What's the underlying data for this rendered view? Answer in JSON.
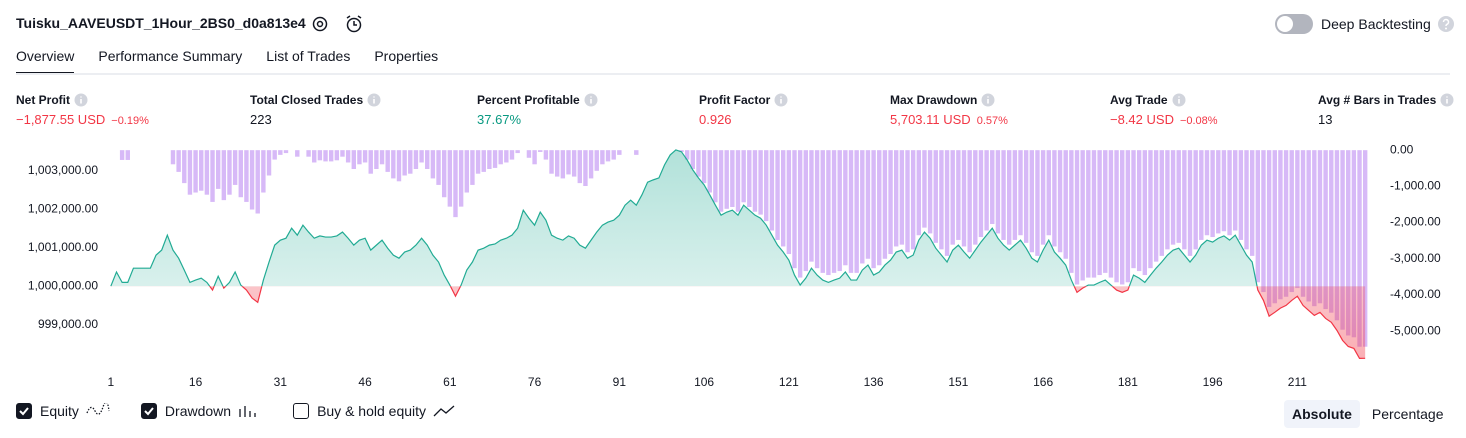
{
  "header": {
    "title": "Tuisku_AAVEUSDT_1Hour_2BS0_d0a813e4",
    "toggle_label": "Deep Backtesting",
    "toggle_on": false
  },
  "tabs": [
    "Overview",
    "Performance Summary",
    "List of Trades",
    "Properties"
  ],
  "active_tab": 0,
  "metrics": [
    {
      "label": "Net Profit",
      "value": "−1,877.55 USD",
      "percent": "−0.19%",
      "color": "#f23645"
    },
    {
      "label": "Total Closed Trades",
      "value": "223",
      "color": "#131722"
    },
    {
      "label": "Percent Profitable",
      "value": "37.67%",
      "color": "#089981"
    },
    {
      "label": "Profit Factor",
      "value": "0.926",
      "color": "#f23645"
    },
    {
      "label": "Max Drawdown",
      "value": "5,703.11 USD",
      "percent": "0.57%",
      "color": "#f23645"
    },
    {
      "label": "Avg Trade",
      "value": "−8.42 USD",
      "percent": "−0.08%",
      "color": "#f23645"
    },
    {
      "label": "Avg # Bars in Trades",
      "value": "13",
      "color": "#131722"
    }
  ],
  "chart_data": {
    "type": "combo",
    "grid": false,
    "x": [
      1,
      2,
      3,
      4,
      5,
      6,
      7,
      8,
      9,
      10,
      11,
      12,
      13,
      14,
      15,
      16,
      17,
      18,
      19,
      20,
      21,
      22,
      23,
      24,
      25,
      26,
      27,
      28,
      29,
      30,
      31,
      32,
      33,
      34,
      35,
      36,
      37,
      38,
      39,
      40,
      41,
      42,
      43,
      44,
      45,
      46,
      47,
      48,
      49,
      50,
      51,
      52,
      53,
      54,
      55,
      56,
      57,
      58,
      59,
      60,
      61,
      62,
      63,
      64,
      65,
      66,
      67,
      68,
      69,
      70,
      71,
      72,
      73,
      74,
      75,
      76,
      77,
      78,
      79,
      80,
      81,
      82,
      83,
      84,
      85,
      86,
      87,
      88,
      89,
      90,
      91,
      92,
      93,
      94,
      95,
      96,
      97,
      98,
      99,
      100,
      101,
      102,
      103,
      104,
      105,
      106,
      107,
      108,
      109,
      110,
      111,
      112,
      113,
      114,
      115,
      116,
      117,
      118,
      119,
      120,
      121,
      122,
      123,
      124,
      125,
      126,
      127,
      128,
      129,
      130,
      131,
      132,
      133,
      134,
      135,
      136,
      137,
      138,
      139,
      140,
      141,
      142,
      143,
      144,
      145,
      146,
      147,
      148,
      149,
      150,
      151,
      152,
      153,
      154,
      155,
      156,
      157,
      158,
      159,
      160,
      161,
      162,
      163,
      164,
      165,
      166,
      167,
      168,
      169,
      170,
      171,
      172,
      173,
      174,
      175,
      176,
      177,
      178,
      179,
      180,
      181,
      182,
      183,
      184,
      185,
      186,
      187,
      188,
      189,
      190,
      191,
      192,
      193,
      194,
      195,
      196,
      197,
      198,
      199,
      200,
      201,
      202,
      203,
      204,
      205,
      206,
      207,
      208,
      209,
      210,
      211,
      212,
      213,
      214,
      215,
      216,
      217,
      218,
      219,
      220,
      221,
      222,
      223
    ],
    "xlim": [
      0.5,
      223.5
    ],
    "xticks": [
      1,
      16,
      31,
      46,
      61,
      76,
      91,
      106,
      121,
      136,
      151,
      166,
      181,
      196,
      211
    ],
    "ylim": [
      998000,
      1003600
    ],
    "yticks": [
      {
        "value": 999000,
        "label": "999,000.00"
      },
      {
        "value": 1000000,
        "label": "1,000,000.00"
      },
      {
        "value": 1001000,
        "label": "1,001,000.00"
      },
      {
        "value": 1002000,
        "label": "1,002,000.00"
      },
      {
        "value": 1003000,
        "label": "1,003,000.00"
      }
    ],
    "y2lim": [
      -5880,
      60
    ],
    "y2ticks": [
      {
        "value": 0,
        "label": "0.00"
      },
      {
        "value": -1000,
        "label": "-1,000.00"
      },
      {
        "value": -2000,
        "label": "-2,000.00"
      },
      {
        "value": -3000,
        "label": "-3,000.00"
      },
      {
        "value": -4000,
        "label": "-4,000.00"
      },
      {
        "value": -5000,
        "label": "-5,000.00"
      }
    ],
    "series": [
      {
        "name": "Equity",
        "type": "area",
        "color": "#22ab94",
        "negative_color": "#f23645",
        "visible": true,
        "values": [
          1000000,
          1000370,
          1000100,
          1000100,
          1000470,
          1000470,
          1000470,
          1000470,
          1000810,
          1000940,
          1001330,
          1000940,
          1000730,
          1000420,
          1000100,
          1000160,
          1000210,
          1000100,
          999900,
          1000260,
          999950,
          1000100,
          1000370,
          1000030,
          999900,
          999690,
          999580,
          1000160,
          1000630,
          1001070,
          1001200,
          1001250,
          1001510,
          1001330,
          1001590,
          1001410,
          1001250,
          1001310,
          1001280,
          1001280,
          1001310,
          1001410,
          1001250,
          1001070,
          1001200,
          1001250,
          1000940,
          1001070,
          1001200,
          1000990,
          1000810,
          1000730,
          1000890,
          1000940,
          1001070,
          1001250,
          1001070,
          1000810,
          1000630,
          1000290,
          1000030,
          999740,
          1000030,
          1000420,
          1000630,
          1000940,
          1000990,
          1001070,
          1001100,
          1001200,
          1001250,
          1001330,
          1001510,
          1001980,
          1001770,
          1001590,
          1001930,
          1001720,
          1001330,
          1001250,
          1001200,
          1001310,
          1001250,
          1001070,
          1000990,
          1001200,
          1001410,
          1001590,
          1001670,
          1001720,
          1001850,
          1002110,
          1002240,
          1002110,
          1002380,
          1002710,
          1002770,
          1002820,
          1003160,
          1003420,
          1003550,
          1003500,
          1003290,
          1003030,
          1002820,
          1002640,
          1002380,
          1002110,
          1001850,
          1001930,
          1001980,
          1001850,
          1002110,
          1001980,
          1001850,
          1001770,
          1001590,
          1001330,
          1001070,
          1000890,
          1000680,
          1000290,
          1000030,
          1000210,
          1000470,
          1000290,
          1000160,
          1000100,
          1000160,
          1000210,
          1000370,
          1000160,
          1000160,
          1000420,
          1000550,
          1000290,
          1000370,
          1000550,
          1000680,
          1000890,
          1000940,
          1000730,
          1000810,
          1001200,
          1001410,
          1001250,
          1000990,
          1000810,
          1000630,
          1000940,
          1001070,
          1000890,
          1000730,
          1000940,
          1001150,
          1001330,
          1001510,
          1001250,
          1001070,
          1000940,
          1001070,
          1001200,
          1000990,
          1000730,
          1000630,
          1000940,
          1001200,
          1000890,
          1000730,
          1000550,
          1000160,
          999840,
          999950,
          1000030,
          1000030,
          1000100,
          1000160,
          1000030,
          999900,
          999840,
          999900,
          1000290,
          1000210,
          1000100,
          1000290,
          1000470,
          1000630,
          1000810,
          1000940,
          1000990,
          1000810,
          1000630,
          1000810,
          1001070,
          1001200,
          1001150,
          1001250,
          1001310,
          1001200,
          1001330,
          1001070,
          1000810,
          1000630,
          999900,
          999630,
          999220,
          999320,
          999430,
          999500,
          999630,
          999740,
          999500,
          999370,
          999240,
          999320,
          999160,
          999060,
          998850,
          998590,
          998430,
          998380,
          998120,
          998122.45
        ]
      },
      {
        "name": "Drawdown",
        "type": "bar",
        "axis": "y2",
        "color": "#d7b9f7",
        "visible": true,
        "values": [
          0,
          0,
          -270,
          -270,
          0,
          0,
          0,
          0,
          0,
          0,
          0,
          -390,
          -600,
          -910,
          -1230,
          -1170,
          -1120,
          -1230,
          -1430,
          -1070,
          -1380,
          -1230,
          -960,
          -1300,
          -1430,
          -1640,
          -1750,
          -1170,
          -700,
          -260,
          -130,
          -80,
          0,
          -180,
          0,
          -180,
          -340,
          -280,
          -310,
          -310,
          -280,
          -180,
          -340,
          -520,
          -390,
          -340,
          -650,
          -520,
          -390,
          -600,
          -780,
          -860,
          -700,
          -650,
          -520,
          -340,
          -520,
          -780,
          -960,
          -1300,
          -1560,
          -1850,
          -1560,
          -1170,
          -960,
          -650,
          -600,
          -520,
          -490,
          -390,
          -340,
          -260,
          -80,
          0,
          -210,
          -390,
          -50,
          -260,
          -650,
          -730,
          -780,
          -670,
          -730,
          -910,
          -990,
          -780,
          -570,
          -390,
          -310,
          -260,
          -130,
          0,
          0,
          -130,
          0,
          0,
          0,
          0,
          0,
          0,
          0,
          -50,
          -260,
          -520,
          -730,
          -910,
          -1170,
          -1440,
          -1700,
          -1620,
          -1570,
          -1700,
          -1440,
          -1570,
          -1700,
          -1780,
          -1960,
          -2220,
          -2480,
          -2660,
          -2870,
          -3260,
          -3520,
          -3340,
          -3080,
          -3260,
          -3390,
          -3450,
          -3390,
          -3340,
          -3180,
          -3390,
          -3390,
          -3130,
          -3000,
          -3260,
          -3180,
          -3000,
          -2870,
          -2660,
          -2610,
          -2820,
          -2740,
          -2350,
          -2140,
          -2300,
          -2560,
          -2740,
          -2920,
          -2610,
          -2480,
          -2660,
          -2820,
          -2610,
          -2400,
          -2220,
          -2040,
          -2300,
          -2480,
          -2610,
          -2480,
          -2350,
          -2560,
          -2820,
          -2920,
          -2610,
          -2350,
          -2660,
          -2820,
          -3000,
          -3390,
          -3710,
          -3600,
          -3520,
          -3520,
          -3450,
          -3390,
          -3520,
          -3650,
          -3710,
          -3650,
          -3260,
          -3340,
          -3450,
          -3260,
          -3080,
          -2920,
          -2740,
          -2610,
          -2560,
          -2740,
          -2920,
          -2740,
          -2480,
          -2350,
          -2400,
          -2300,
          -2240,
          -2350,
          -2220,
          -2480,
          -2740,
          -2920,
          -3650,
          -3920,
          -4330,
          -4230,
          -4120,
          -4050,
          -3920,
          -3810,
          -4050,
          -4180,
          -4310,
          -4230,
          -4390,
          -4490,
          -4700,
          -4960,
          -5120,
          -5170,
          -5430,
          -5430
        ]
      }
    ]
  },
  "controls": {
    "buy_hold": {
      "label": "Buy & hold equity",
      "checked": false
    },
    "scale": {
      "options": [
        "Absolute",
        "Percentage"
      ],
      "active": 0
    }
  }
}
